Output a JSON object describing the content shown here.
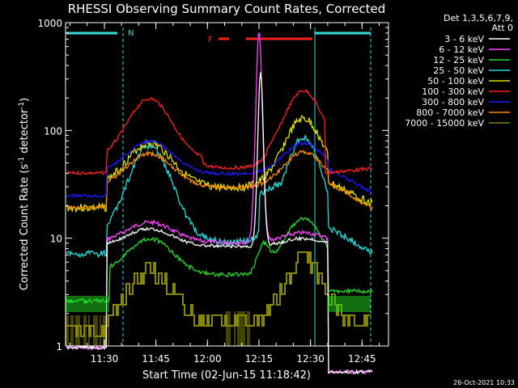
{
  "chart_data": {
    "type": "line",
    "title": "RHESSI Observing Summary Count Rates, Corrected",
    "xlabel": "Start Time (02-Jun-15 11:18:42)",
    "ylabel": "Corrected Count Rate (s",
    "ylabel_sup1": "-1",
    "ylabel_mid": " detector",
    "ylabel_sup2": "-1",
    "ylabel_end": ")",
    "yscale": "log",
    "ylim": [
      1,
      1000
    ],
    "xlim_minutes": [
      0,
      53
    ],
    "x_ticks": [
      {
        "label": "11:30",
        "min": 11.3
      },
      {
        "label": "11:45",
        "min": 26.3
      },
      {
        "label": "12:00",
        "min": 41.3
      },
      {
        "label": "12:15",
        "min": 56.3
      },
      {
        "label": "12:30",
        "min": 71.3
      },
      {
        "label": "12:45",
        "min": 86.3
      }
    ],
    "y_ticks": [
      {
        "label": "1",
        "value": 1
      },
      {
        "label": "10",
        "value": 10
      },
      {
        "label": "100",
        "value": 100
      },
      {
        "label": "1000",
        "value": 1000
      }
    ],
    "legend_header": [
      "Det 1,3,5,6,7,9,",
      "Att 0"
    ],
    "legend": [
      {
        "name": "3 - 6 keV",
        "color": "#ffffff"
      },
      {
        "name": "6 - 12 keV",
        "color": "#ff44ff"
      },
      {
        "name": "12 - 25 keV",
        "color": "#22dd22"
      },
      {
        "name": "25 - 50 keV",
        "color": "#22dddd"
      },
      {
        "name": "50 - 100 keV",
        "color": "#dddd00"
      },
      {
        "name": "100 - 300 keV",
        "color": "#ff2020"
      },
      {
        "name": "300 - 800 keV",
        "color": "#1a1aff"
      },
      {
        "name": "800 - 7000 keV",
        "color": "#ff8800"
      },
      {
        "name": "7000 - 15000 keV",
        "color": "#888800"
      }
    ],
    "night_label": "N",
    "flare_label": "F",
    "timestamp": "26-Oct-2021 10:33",
    "times": [
      0,
      2,
      4,
      5.5,
      6,
      8,
      10,
      12,
      14,
      16,
      18,
      20,
      22,
      24,
      26,
      28,
      30,
      32,
      34,
      36,
      38,
      40,
      42,
      44,
      46,
      48,
      50,
      52,
      53,
      54,
      56,
      57,
      58,
      59,
      60,
      61,
      62,
      64,
      66,
      68,
      70,
      72,
      74,
      76,
      78,
      80,
      82,
      84,
      86,
      88,
      90,
      92,
      94
    ],
    "series": [
      {
        "name": "3 - 6 keV",
        "values": [
          null,
          null,
          null,
          null,
          null,
          null,
          null,
          null,
          null,
          null,
          null,
          null,
          null,
          null,
          null,
          null,
          null,
          null,
          null,
          null,
          null,
          null,
          null,
          null,
          null,
          null,
          null,
          null,
          null,
          null,
          null,
          null,
          null,
          null,
          null,
          null,
          null,
          null,
          null,
          null,
          null,
          null,
          null,
          null,
          null,
          null,
          null,
          null,
          null,
          null,
          null,
          null,
          null
        ]
      },
      {
        "name": "6 - 12 keV",
        "values": [
          null,
          null,
          null,
          null,
          null,
          null,
          null,
          null,
          null,
          null,
          null,
          null,
          null,
          null,
          null,
          null,
          null,
          null,
          null,
          null,
          null,
          null,
          null,
          null,
          null,
          null,
          null,
          null,
          null,
          null,
          null,
          null,
          null,
          null,
          null,
          null,
          null,
          null,
          null,
          null,
          null,
          null,
          null,
          null,
          null,
          null,
          null,
          null,
          null,
          null,
          null,
          null,
          null
        ]
      },
      {
        "name": "12 - 25 keV",
        "values": [
          null,
          null,
          null,
          null,
          null,
          null,
          null,
          null,
          null,
          null,
          null,
          null,
          null,
          null,
          null,
          null,
          null,
          null,
          null,
          null,
          null,
          null,
          null,
          null,
          null,
          null,
          null,
          null,
          null,
          null,
          null,
          null,
          null,
          null,
          null,
          null,
          null,
          null,
          null,
          null,
          null,
          null,
          null,
          null,
          null,
          null,
          null,
          null,
          null,
          null,
          null,
          null,
          null
        ]
      }
    ]
  }
}
